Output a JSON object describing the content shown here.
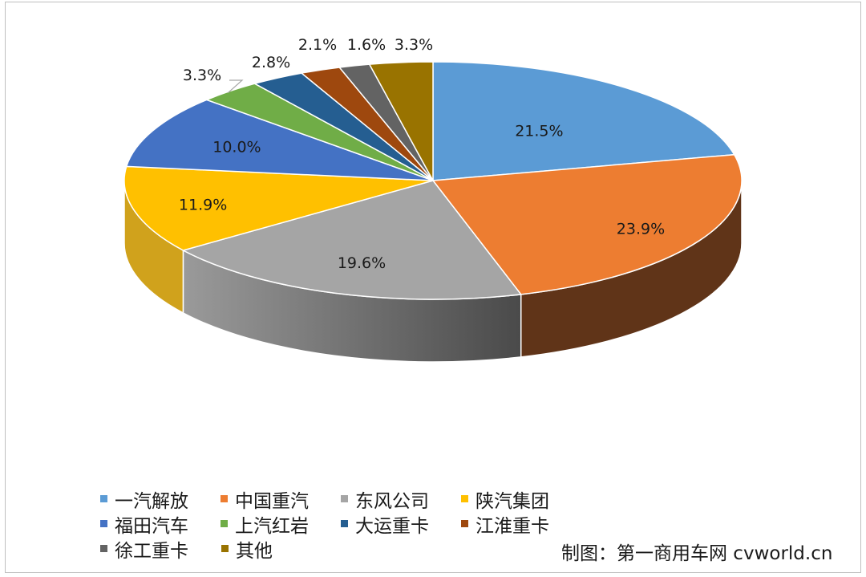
{
  "chart_data": {
    "type": "pie",
    "style": "3d",
    "legend_position": "bottom",
    "slices": [
      {
        "name": "一汽解放",
        "value": 21.5,
        "label": "21.5%",
        "color": "#5B9BD5"
      },
      {
        "name": "中国重汽",
        "value": 23.9,
        "label": "23.9%",
        "color": "#ED7D31"
      },
      {
        "name": "东风公司",
        "value": 19.6,
        "label": "19.6%",
        "color": "#A5A5A5"
      },
      {
        "name": "陕汽集团",
        "value": 11.9,
        "label": "11.9%",
        "color": "#FFC000"
      },
      {
        "name": "福田汽车",
        "value": 10.0,
        "label": "10.0%",
        "color": "#4472C4"
      },
      {
        "name": "上汽红岩",
        "value": 3.3,
        "label": "3.3%",
        "color": "#70AD47"
      },
      {
        "name": "大运重卡",
        "value": 2.8,
        "label": "2.8%",
        "color": "#255E91"
      },
      {
        "name": "江淮重卡",
        "value": 2.1,
        "label": "2.1%",
        "color": "#9E480E"
      },
      {
        "name": "徐工重卡",
        "value": 1.6,
        "label": "1.6%",
        "color": "#636363"
      },
      {
        "name": "其他",
        "value": 3.3,
        "label": "3.3%",
        "color": "#997300"
      }
    ]
  },
  "credit": "制图：第一商用车网 cvworld.cn"
}
